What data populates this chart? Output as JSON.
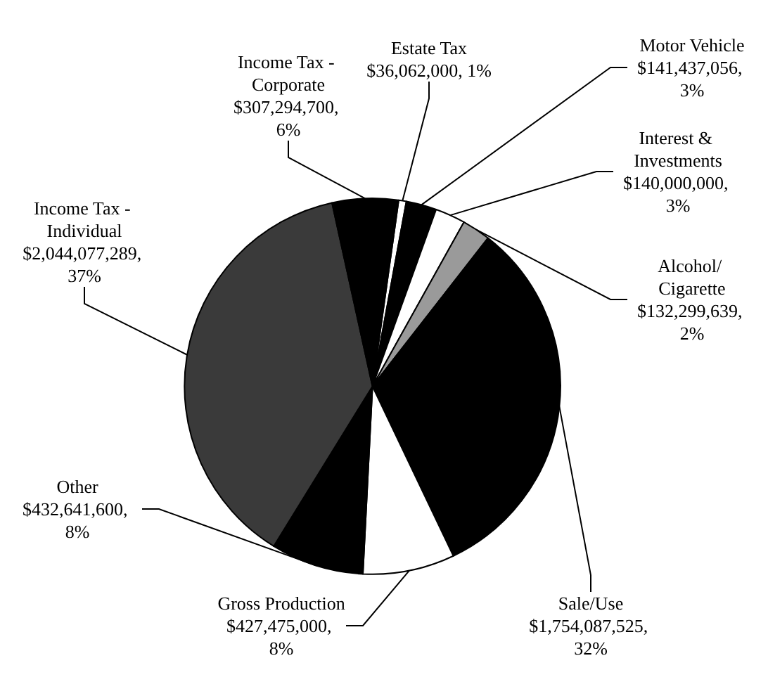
{
  "chart_data": {
    "type": "pie",
    "categories": [
      "Estate Tax",
      "Motor Vehicle",
      "Interest & Investments",
      "Alcohol/ Cigarette",
      "Sale/Use",
      "Gross Production",
      "Other",
      "Income Tax - Individual",
      "Income Tax - Corporate"
    ],
    "values": [
      36062000,
      141437056,
      140000000,
      132299639,
      1754087525,
      427475000,
      432641600,
      2044077289,
      307294700
    ],
    "value_labels": [
      "$36,062,000, 1%",
      "$141,437,056, 3%",
      "$140,000,000, 3%",
      "$132,299,639, 2%",
      "$1,754,087,525, 32%",
      "$427,475,000, 8%",
      "$432,641,600, 8%",
      "$2,044,077,289, 37%",
      "$307,294,700, 6%"
    ],
    "colors": [
      "#ffffff",
      "#000000",
      "#ffffff",
      "#9a9a9a",
      "#000000",
      "#ffffff",
      "#000000",
      "#3a3a3a",
      "#000000"
    ],
    "legend": false
  }
}
